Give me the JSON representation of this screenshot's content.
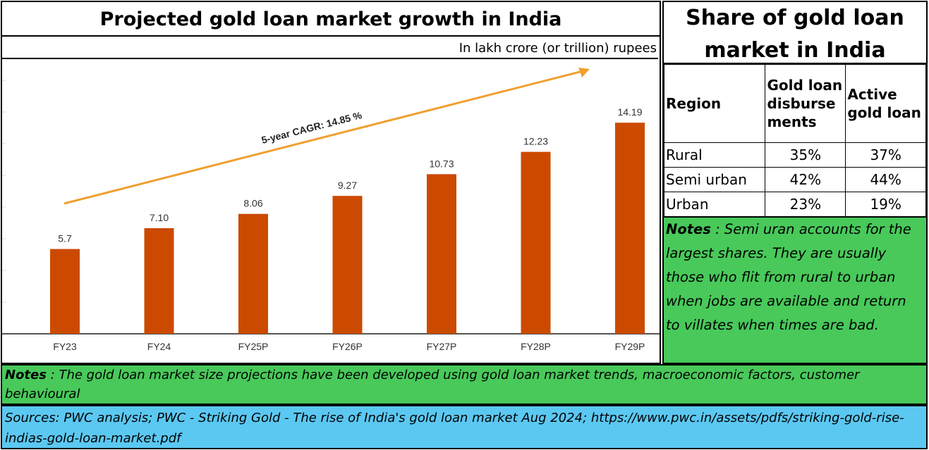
{
  "chart_data": {
    "type": "bar",
    "title": "Projected gold loan market growth in India",
    "unit_label": "In lakh  crore (or trillion) rupees",
    "categories": [
      "FY23",
      "FY24",
      "FY25P",
      "FY26P",
      "FY27P",
      "FY28P",
      "FY29P"
    ],
    "values": [
      5.7,
      7.1,
      8.06,
      9.27,
      10.73,
      12.23,
      14.19
    ],
    "value_labels": [
      "5.7",
      "7.10",
      "8.06",
      "9.27",
      "10.73",
      "12.23",
      "14.19"
    ],
    "annotation": "5-year CAGR: 14.85 %",
    "ylim": [
      0,
      16
    ],
    "grid": false,
    "bar_color": "#cc4a00",
    "arrow_color": "#f0a030"
  },
  "share_table": {
    "title": "Share of gold loan market in India",
    "headers": [
      "Region",
      "Gold loan disburse ments",
      "Active gold loan"
    ],
    "rows": [
      [
        "Rural",
        "35%",
        "37%"
      ],
      [
        "Semi urban",
        "42%",
        "44%"
      ],
      [
        "Urban",
        "23%",
        "19%"
      ]
    ]
  },
  "side_notes": {
    "label": "Notes",
    "text": " : Semi uran accounts for the largest shares.  They are usually those who flit from rural to urban when jobs are available and return to villates when times are bad."
  },
  "bottom_notes": {
    "label": "Notes",
    "text": " : The gold loan market size projections have been developed using gold loan market trends, macroeconomic factors, customer behavioural"
  },
  "sources": {
    "text": "Sources: PWC analysis; PWC - Striking Gold - The rise of India's gold loan market Aug 2024; https://www.pwc.in/assets/pdfs/striking-gold-rise-indias-gold-loan-market.pdf"
  },
  "colors": {
    "notes_green": "#48c95a",
    "sources_blue": "#5bc8f2"
  }
}
